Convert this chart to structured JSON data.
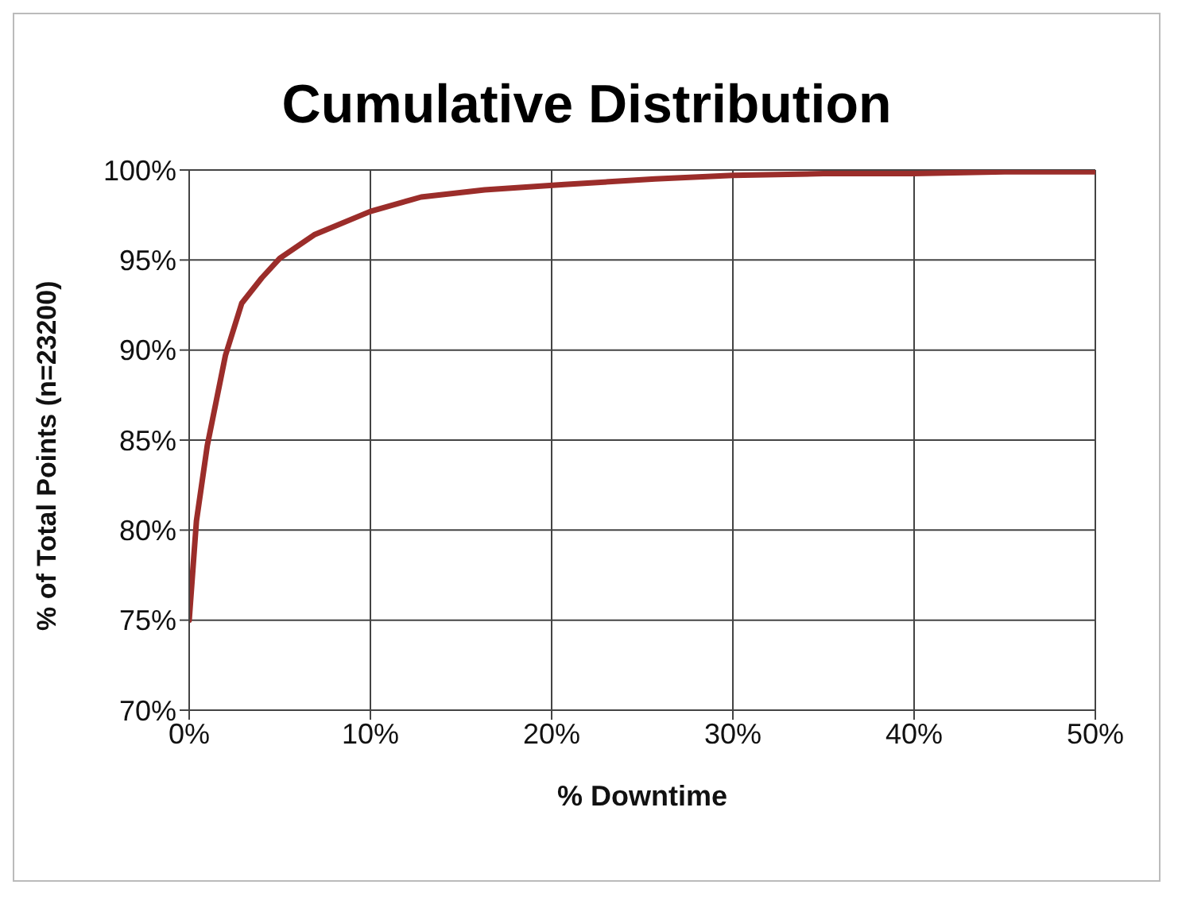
{
  "chart_data": {
    "type": "line",
    "title": "Cumulative Distribution",
    "xlabel": "% Downtime",
    "ylabel": "% of Total Points (n=23200)",
    "x": [
      0,
      0.4,
      1,
      2,
      2.9,
      4,
      5,
      6.9,
      10,
      12.8,
      16.3,
      20.7,
      25.7,
      30,
      35,
      40,
      45,
      50
    ],
    "series": [
      {
        "color": "#9b2d2a",
        "values": [
          75,
          80.5,
          84.7,
          89.7,
          92.6,
          94,
          95.1,
          96.4,
          97.7,
          98.5,
          98.9,
          99.2,
          99.5,
          99.7,
          99.8,
          99.8,
          99.9,
          99.9
        ]
      }
    ],
    "xlim": [
      0,
      50
    ],
    "xticks": [
      {
        "value": 0,
        "label": "0%"
      },
      {
        "value": 10,
        "label": "10%"
      },
      {
        "value": 20,
        "label": "20%"
      },
      {
        "value": 30,
        "label": "30%"
      },
      {
        "value": 40,
        "label": "40%"
      },
      {
        "value": 50,
        "label": "50%"
      }
    ],
    "ylim": [
      70,
      100
    ],
    "yticks": [
      {
        "value": 70,
        "label": "70%"
      },
      {
        "value": 75,
        "label": "75%"
      },
      {
        "value": 80,
        "label": "80%"
      },
      {
        "value": 85,
        "label": "85%"
      },
      {
        "value": 90,
        "label": "90%"
      },
      {
        "value": 95,
        "label": "95%"
      },
      {
        "value": 100,
        "label": "100%"
      }
    ],
    "grid": true,
    "legend": false,
    "marker": "none",
    "line_style": "solid"
  }
}
